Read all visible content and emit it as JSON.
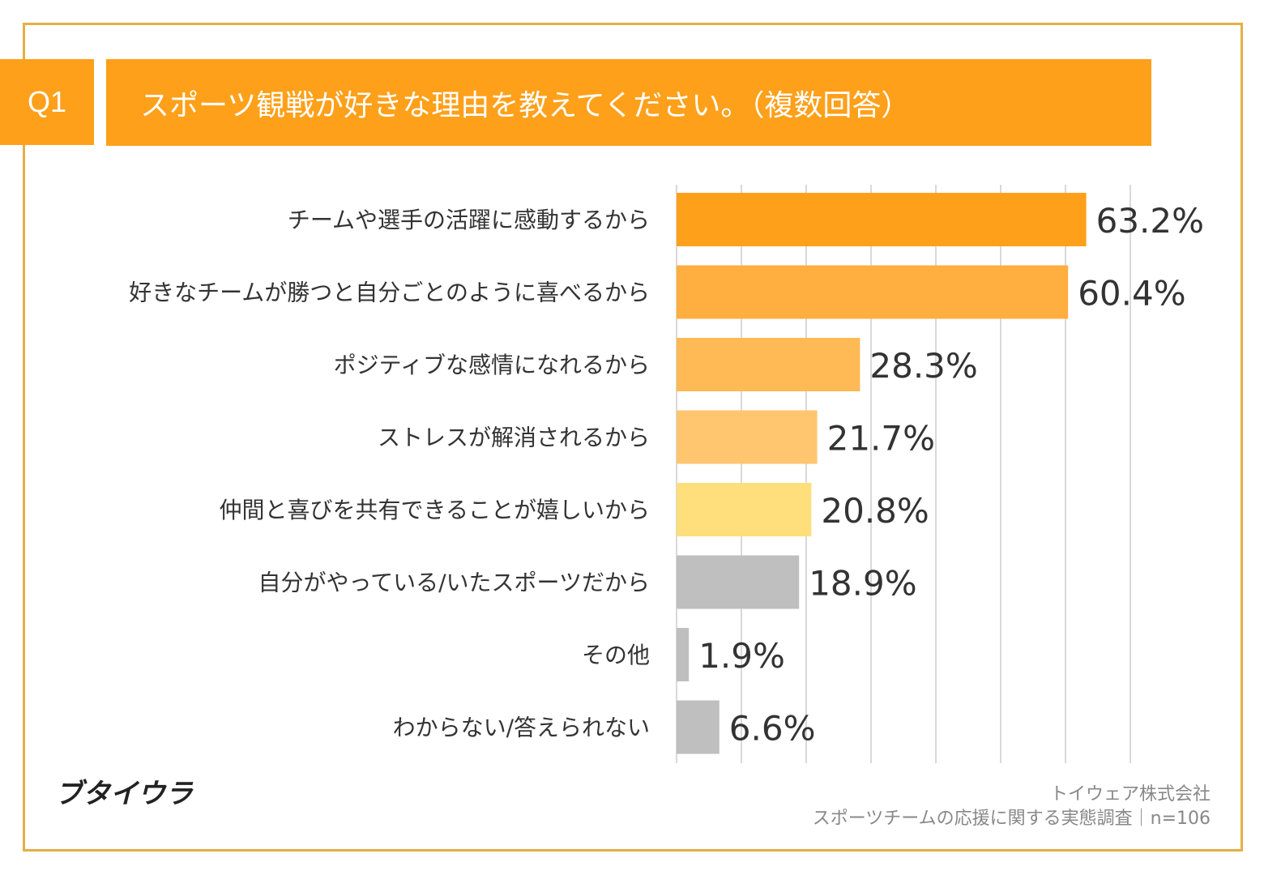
{
  "header": {
    "q_label": "Q1",
    "title": "スポーツ観戦が好きな理由を教えてください。（複数回答）"
  },
  "chart_data": {
    "type": "bar",
    "orientation": "horizontal",
    "categories": [
      "チームや選手の活躍に感動するから",
      "好きなチームが勝つと自分ごとのように喜べるから",
      "ポジティブな感情になれるから",
      "ストレスが解消されるから",
      "仲間と喜びを共有できることが嬉しいから",
      "自分がやっている/いたスポーツだから",
      "その他",
      "わからない/答えられない"
    ],
    "values": [
      63.2,
      60.4,
      28.3,
      21.7,
      20.8,
      18.9,
      1.9,
      6.6
    ],
    "value_labels": [
      "63.2%",
      "60.4%",
      "28.3%",
      "21.7%",
      "20.8%",
      "18.9%",
      "1.9%",
      "6.6%"
    ],
    "colors": [
      "#FFA01A",
      "#FFAE3F",
      "#FFB955",
      "#FFC56F",
      "#FFDF7C",
      "#BFBFBF",
      "#BFBFBF",
      "#BFBFBF"
    ],
    "xlim": [
      0,
      70
    ],
    "grid": true
  },
  "footer": {
    "logo": "ブタイウラ",
    "company": "トイウェア株式会社",
    "survey": "スポーツチームの応援に関する実態調査｜n=106"
  }
}
